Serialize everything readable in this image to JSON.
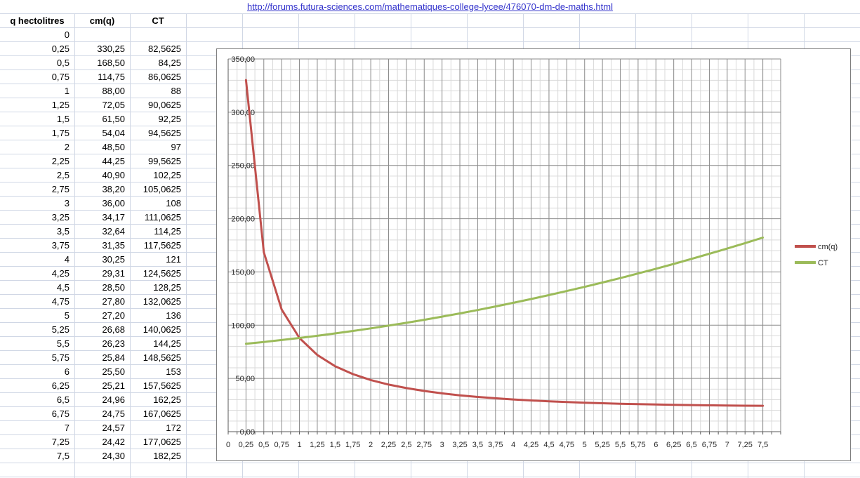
{
  "link": {
    "text": "http://forums.futura-sciences.com/mathematiques-college-lycee/476070-dm-de-maths.html",
    "color": "#3333CC"
  },
  "table": {
    "headers": [
      "q hectolitres",
      "cm(q)",
      "CT"
    ],
    "rows": [
      [
        "0",
        "",
        ""
      ],
      [
        "0,25",
        "330,25",
        "82,5625"
      ],
      [
        "0,5",
        "168,50",
        "84,25"
      ],
      [
        "0,75",
        "114,75",
        "86,0625"
      ],
      [
        "1",
        "88,00",
        "88"
      ],
      [
        "1,25",
        "72,05",
        "90,0625"
      ],
      [
        "1,5",
        "61,50",
        "92,25"
      ],
      [
        "1,75",
        "54,04",
        "94,5625"
      ],
      [
        "2",
        "48,50",
        "97"
      ],
      [
        "2,25",
        "44,25",
        "99,5625"
      ],
      [
        "2,5",
        "40,90",
        "102,25"
      ],
      [
        "2,75",
        "38,20",
        "105,0625"
      ],
      [
        "3",
        "36,00",
        "108"
      ],
      [
        "3,25",
        "34,17",
        "111,0625"
      ],
      [
        "3,5",
        "32,64",
        "114,25"
      ],
      [
        "3,75",
        "31,35",
        "117,5625"
      ],
      [
        "4",
        "30,25",
        "121"
      ],
      [
        "4,25",
        "29,31",
        "124,5625"
      ],
      [
        "4,5",
        "28,50",
        "128,25"
      ],
      [
        "4,75",
        "27,80",
        "132,0625"
      ],
      [
        "5",
        "27,20",
        "136"
      ],
      [
        "5,25",
        "26,68",
        "140,0625"
      ],
      [
        "5,5",
        "26,23",
        "144,25"
      ],
      [
        "5,75",
        "25,84",
        "148,5625"
      ],
      [
        "6",
        "25,50",
        "153"
      ],
      [
        "6,25",
        "25,21",
        "157,5625"
      ],
      [
        "6,5",
        "24,96",
        "162,25"
      ],
      [
        "6,75",
        "24,75",
        "167,0625"
      ],
      [
        "7",
        "24,57",
        "172"
      ],
      [
        "7,25",
        "24,42",
        "177,0625"
      ],
      [
        "7,5",
        "24,30",
        "182,25"
      ]
    ]
  },
  "chart_data": {
    "type": "line",
    "title": "",
    "xlabel": "",
    "ylabel": "",
    "x": [
      0.25,
      0.5,
      0.75,
      1,
      1.25,
      1.5,
      1.75,
      2,
      2.25,
      2.5,
      2.75,
      3,
      3.25,
      3.5,
      3.75,
      4,
      4.25,
      4.5,
      4.75,
      5,
      5.25,
      5.5,
      5.75,
      6,
      6.25,
      6.5,
      6.75,
      7,
      7.25,
      7.5
    ],
    "series": [
      {
        "name": "cm(q)",
        "color": "#C0504D",
        "values": [
          330.25,
          168.5,
          114.75,
          88,
          72.05,
          61.5,
          54.04,
          48.5,
          44.25,
          40.9,
          38.2,
          36,
          34.17,
          32.64,
          31.35,
          30.25,
          29.31,
          28.5,
          27.8,
          27.2,
          26.68,
          26.23,
          25.84,
          25.5,
          25.21,
          24.96,
          24.75,
          24.57,
          24.42,
          24.3
        ]
      },
      {
        "name": "CT",
        "color": "#9BBB59",
        "values": [
          82.5625,
          84.25,
          86.0625,
          88,
          90.0625,
          92.25,
          94.5625,
          97,
          99.5625,
          102.25,
          105.0625,
          108,
          111.0625,
          114.25,
          117.5625,
          121,
          124.5625,
          128.25,
          132.0625,
          136,
          140.0625,
          144.25,
          148.5625,
          153,
          157.5625,
          162.25,
          167.0625,
          172,
          177.0625,
          182.25
        ]
      }
    ],
    "xlim": [
      0,
      7.75
    ],
    "ylim": [
      0,
      350
    ],
    "x_major_step": 0.25,
    "x_minor_step": 0.125,
    "y_major_step": 50,
    "y_minor_step": 10,
    "grid": "major+minor",
    "legend_position": "right",
    "x_tick_labels": [
      "0",
      "0,25",
      "0,5",
      "0,75",
      "1",
      "1,25",
      "1,5",
      "1,75",
      "2",
      "2,25",
      "2,5",
      "2,75",
      "3",
      "3,25",
      "3,5",
      "3,75",
      "4",
      "4,25",
      "4,5",
      "4,75",
      "5",
      "5,25",
      "5,5",
      "5,75",
      "6",
      "6,25",
      "6,5",
      "6,75",
      "7",
      "7,25",
      "7,5"
    ],
    "y_tick_labels": [
      "0,00",
      "50,00",
      "100,00",
      "150,00",
      "200,00",
      "250,00",
      "300,00",
      "350,00"
    ]
  }
}
